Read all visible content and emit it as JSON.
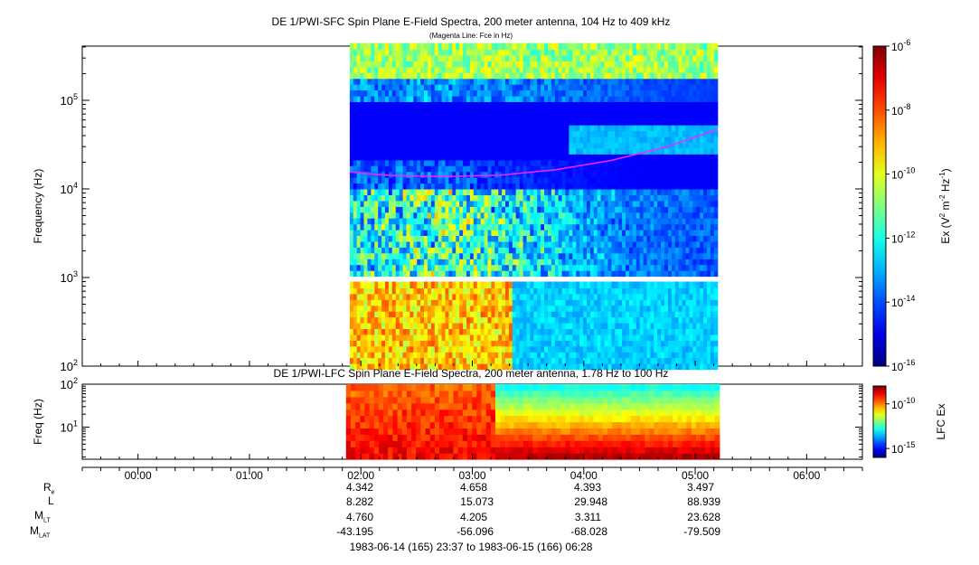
{
  "chart_data": [
    {
      "type": "heatmap",
      "title": "DE 1/PWI-SFC  Spin Plane E-Field Spectra, 200 meter antenna, 104 Hz to 409 kHz",
      "subtitle": "(Magenta Line: Fce in Hz)",
      "ylabel": "Frequency (Hz)",
      "yscale": "log",
      "ylim": [
        100,
        409000
      ],
      "yticks": [
        {
          "value": 100,
          "base": "10",
          "exp": "2"
        },
        {
          "value": 1000,
          "base": "10",
          "exp": "3"
        },
        {
          "value": 10000,
          "base": "10",
          "exp": "4"
        },
        {
          "value": 100000,
          "base": "10",
          "exp": "5"
        }
      ],
      "data_start": "01:54",
      "data_end": "05:12",
      "colorbar": {
        "label": "Ex (V² m⁻² Hz⁻¹)",
        "label_parts": {
          "a": "Ex (V",
          "b": "2",
          "c": " m",
          "d": "-2",
          "e": " Hz",
          "f": "-1",
          "g": ")"
        },
        "scale": "log",
        "range": [
          1e-16,
          1e-06
        ],
        "ticks": [
          {
            "value": 1e-06,
            "base": "10",
            "exp": "-6"
          },
          {
            "value": 1e-08,
            "base": "10",
            "exp": "-8"
          },
          {
            "value": 1e-10,
            "base": "10",
            "exp": "-10"
          },
          {
            "value": 1e-12,
            "base": "10",
            "exp": "-12"
          },
          {
            "value": 1e-14,
            "base": "10",
            "exp": "-14"
          },
          {
            "value": 1e-16,
            "base": "10",
            "exp": "-16"
          }
        ]
      },
      "fce_line": {
        "color": "#ff22ff",
        "points": [
          [
            "01:54",
            15500
          ],
          [
            "02:15",
            14200
          ],
          [
            "02:45",
            13800
          ],
          [
            "03:15",
            14300
          ],
          [
            "03:45",
            16500
          ],
          [
            "04:15",
            21000
          ],
          [
            "04:45",
            30000
          ],
          [
            "05:12",
            47000
          ]
        ]
      }
    },
    {
      "type": "heatmap",
      "title": "DE 1/PWI-LFC  Spin Plane E-Field Spectra, 200 meter antenna, 1.78 Hz to 100 Hz",
      "ylabel": "Freq (Hz)",
      "yscale": "log",
      "ylim": [
        1.78,
        100
      ],
      "yticks": [
        {
          "value": 10,
          "base": "10",
          "exp": "1"
        },
        {
          "value": 100,
          "base": "10",
          "exp": "2"
        }
      ],
      "data_start": "01:52",
      "data_end": "05:13",
      "colorbar": {
        "label": "LFC Ex",
        "scale": "log",
        "range": [
          1e-16,
          1e-08
        ],
        "ticks": [
          {
            "value": 1e-10,
            "base": "10",
            "exp": "-10"
          },
          {
            "value": 1e-15,
            "base": "10",
            "exp": "-15"
          }
        ]
      }
    }
  ],
  "time_axis": {
    "range": [
      "-00:30",
      "06:30"
    ],
    "major": [
      {
        "time": "00:00",
        "label": "00:00"
      },
      {
        "time": "01:00",
        "label": "01:00"
      },
      {
        "time": "02:00",
        "label": "02:00"
      },
      {
        "time": "03:00",
        "label": "03:00"
      },
      {
        "time": "04:00",
        "label": "04:00"
      },
      {
        "time": "05:00",
        "label": "05:00"
      },
      {
        "time": "06:00",
        "label": "06:00"
      }
    ]
  },
  "ephemeris": {
    "rows": [
      {
        "label": "R",
        "sub": "e",
        "values": [
          "4.342",
          "4.658",
          "4.393",
          "3.497"
        ]
      },
      {
        "label": "L",
        "sub": "",
        "values": [
          "8.282",
          "15.073",
          "29.948",
          "88.939"
        ]
      },
      {
        "label": "M",
        "sub": "LT",
        "values": [
          "4.760",
          "4.205",
          "3.311",
          "23.628"
        ]
      },
      {
        "label": "M",
        "sub": "LAT",
        "values": [
          "-43.195",
          "-56.096",
          "-68.028",
          "-79.509"
        ]
      }
    ],
    "times": [
      "02:00",
      "03:00",
      "04:00",
      "05:00"
    ]
  },
  "date_range": "1983-06-14 (165) 23:37 to 1983-06-15 (166) 06:28"
}
